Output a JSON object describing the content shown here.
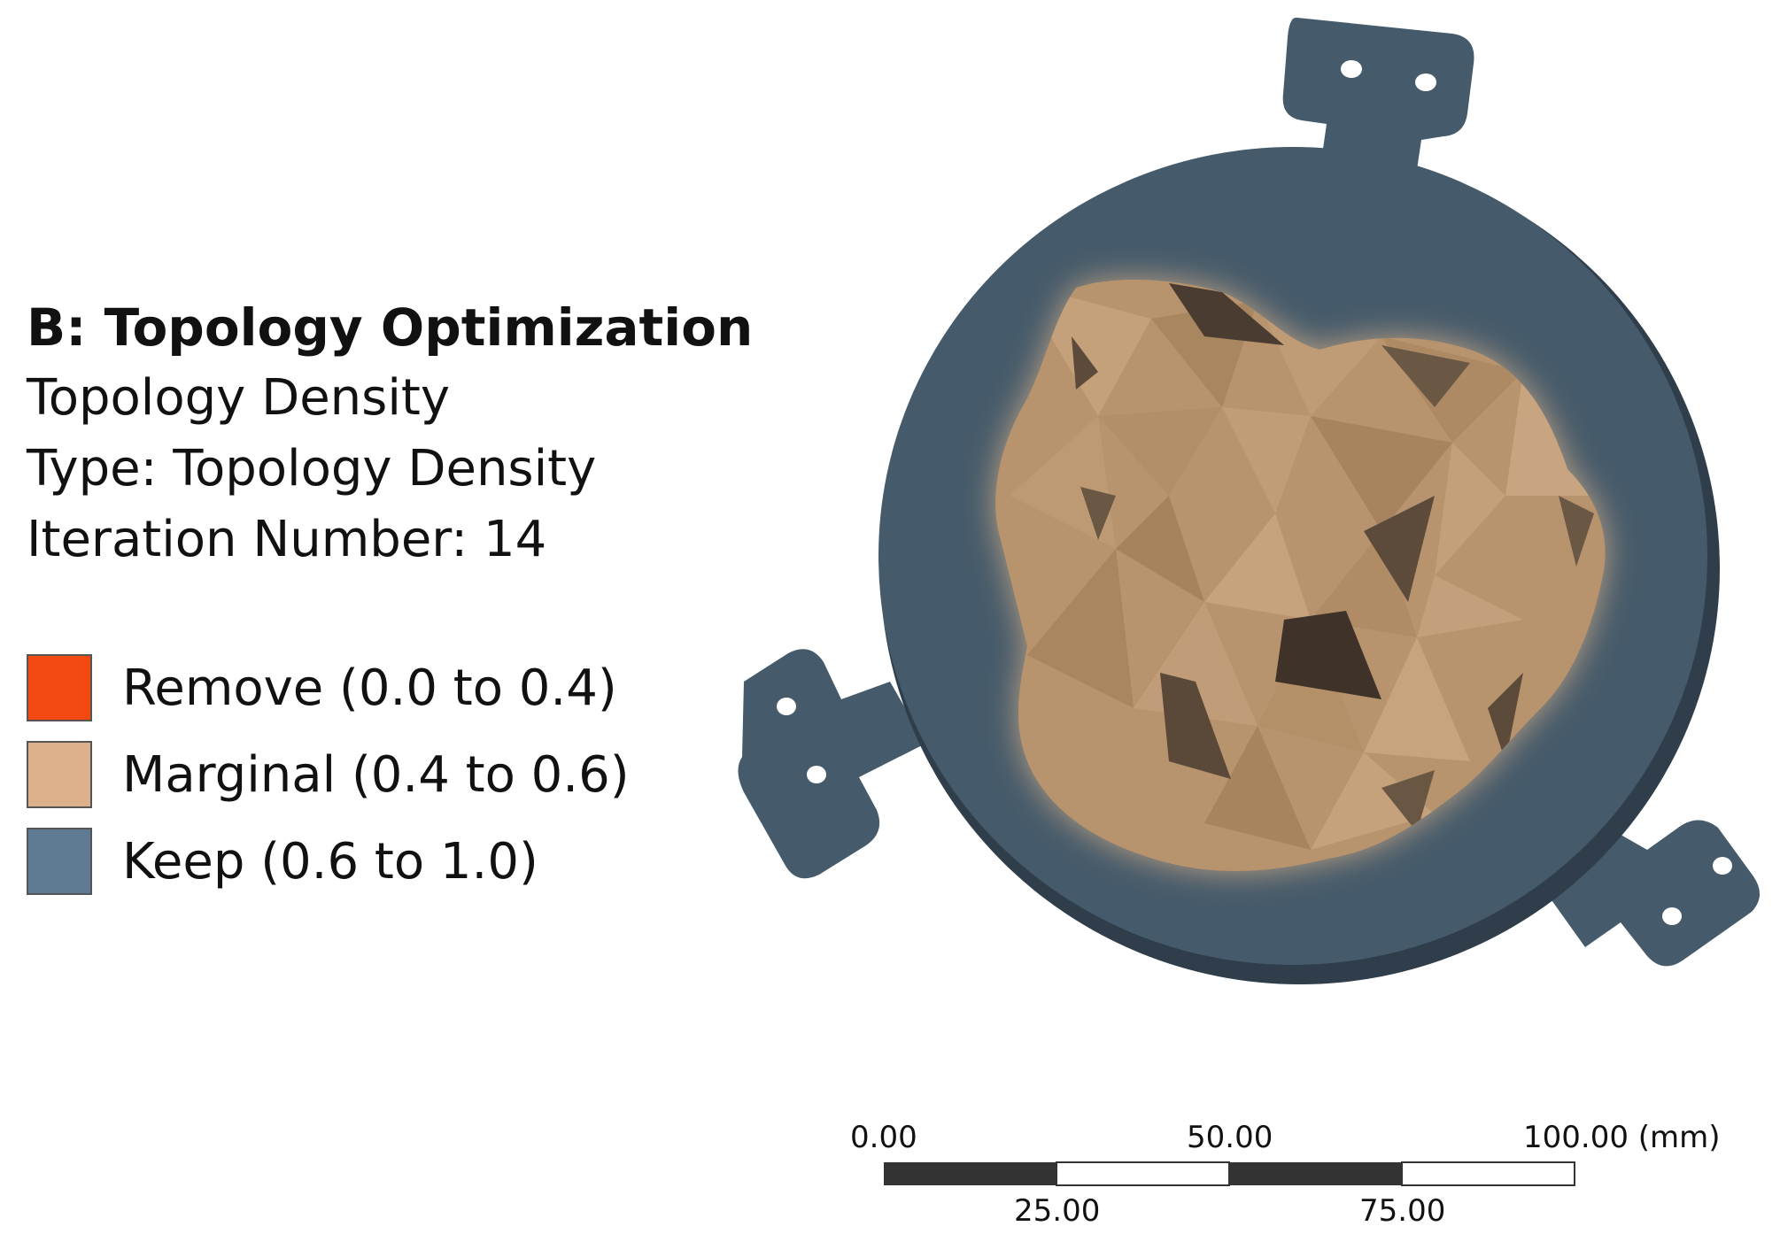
{
  "result_panel": {
    "title": "B: Topology Optimization",
    "lines": [
      "Topology Density",
      "Type: Topology Density",
      "Iteration Number: 14"
    ]
  },
  "legend": {
    "items": [
      {
        "label": "Remove (0.0 to 0.4)",
        "color": "#f44a12"
      },
      {
        "label": "Marginal (0.4 to 0.6)",
        "color": "#dcb08a"
      },
      {
        "label": "Keep (0.6 to 1.0)",
        "color": "#5f7b93"
      }
    ]
  },
  "model": {
    "keep_color": "#455a6a",
    "marginal_color": "#b7936e",
    "marginal_dark_color": "#5c4a3a"
  },
  "scale": {
    "top_labels": [
      "0.00",
      "50.00",
      "100.00 (mm)"
    ],
    "bottom_labels": [
      "25.00",
      "75.00"
    ]
  }
}
